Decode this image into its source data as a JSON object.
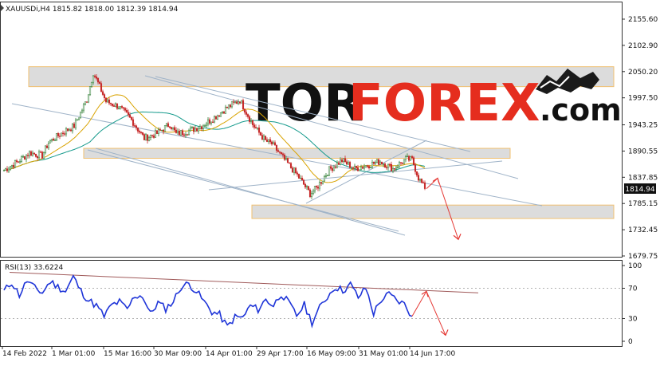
{
  "chart_data": [
    {
      "type": "candlestick",
      "title": "XAUUSDi,H4 1815.82 1818.00 1812.39 1814.94",
      "symbol": "XAUUSDi",
      "timeframe": "H4",
      "ohlc_last": {
        "open": 1815.82,
        "high": 1818.0,
        "low": 1812.39,
        "close": 1814.94
      },
      "current_price_label": "1814.94",
      "y_ticks": [
        "2155.60",
        "2102.90",
        "2050.20",
        "1997.50",
        "1943.25",
        "1890.55",
        "1837.85",
        "1785.15",
        "1732.45",
        "1679.75"
      ],
      "ylim": [
        1679.75,
        2155.6
      ],
      "x_ticks": [
        "14 Feb 2022",
        "1 Mar 01:00",
        "15 Mar 16:00",
        "30 Mar 09:00",
        "14 Apr 01:00",
        "29 Apr 17:00",
        "16 May 09:00",
        "31 May 01:00",
        "14 Jun 17:00"
      ],
      "price_path": [
        [
          0,
          1852
        ],
        [
          2,
          1868
        ],
        [
          4,
          1887
        ],
        [
          6,
          1881
        ],
        [
          7,
          1908
        ],
        [
          9,
          1926
        ],
        [
          11,
          1941
        ],
        [
          13,
          1994
        ],
        [
          14,
          2048
        ],
        [
          15,
          2020
        ],
        [
          16,
          1990
        ],
        [
          18,
          1980
        ],
        [
          20,
          1953
        ],
        [
          22,
          1916
        ],
        [
          24,
          1926
        ],
        [
          26,
          1945
        ],
        [
          27,
          1925
        ],
        [
          29,
          1931
        ],
        [
          31,
          1941
        ],
        [
          33,
          1958
        ],
        [
          35,
          1978
        ],
        [
          37,
          1993
        ],
        [
          39,
          1944
        ],
        [
          41,
          1911
        ],
        [
          42,
          1905
        ],
        [
          44,
          1873
        ],
        [
          46,
          1842
        ],
        [
          48,
          1805
        ],
        [
          49,
          1816
        ],
        [
          51,
          1853
        ],
        [
          53,
          1872
        ],
        [
          55,
          1855
        ],
        [
          57,
          1862
        ],
        [
          59,
          1870
        ],
        [
          61,
          1855
        ],
        [
          63,
          1874
        ],
        [
          64,
          1873
        ],
        [
          65,
          1837
        ],
        [
          66,
          1815
        ]
      ],
      "zones": [
        {
          "low": 2020,
          "high": 2060
        },
        {
          "low": 1876,
          "high": 1896
        },
        {
          "low": 1755,
          "high": 1782
        }
      ],
      "forecast": {
        "to_price": 1836,
        "then_price": 1713
      }
    },
    {
      "type": "line",
      "title": "RSI(13) 33.6224",
      "indicator": "RSI(13)",
      "value": 33.6224,
      "y_ticks": [
        "100",
        "70",
        "30",
        "0"
      ],
      "ylim": [
        0,
        100
      ],
      "levels": [
        70,
        30
      ],
      "rsi_path": [
        [
          0,
          66
        ],
        [
          1,
          78
        ],
        [
          2,
          61
        ],
        [
          3,
          80
        ],
        [
          4,
          70
        ],
        [
          5,
          64
        ],
        [
          6,
          79
        ],
        [
          7,
          72
        ],
        [
          8,
          66
        ],
        [
          9,
          85
        ],
        [
          10,
          66
        ],
        [
          11,
          54
        ],
        [
          12,
          47
        ],
        [
          13,
          33
        ],
        [
          14,
          48
        ],
        [
          15,
          52
        ],
        [
          16,
          42
        ],
        [
          17,
          60
        ],
        [
          18,
          60
        ],
        [
          19,
          36
        ],
        [
          20,
          51
        ],
        [
          21,
          43
        ],
        [
          22,
          53
        ],
        [
          23,
          72
        ],
        [
          24,
          76
        ],
        [
          25,
          66
        ],
        [
          26,
          52
        ],
        [
          27,
          39
        ],
        [
          28,
          35
        ],
        [
          29,
          19
        ],
        [
          30,
          32
        ],
        [
          31,
          31
        ],
        [
          32,
          47
        ],
        [
          33,
          42
        ],
        [
          34,
          55
        ],
        [
          35,
          47
        ],
        [
          36,
          63
        ],
        [
          37,
          50
        ],
        [
          38,
          34
        ],
        [
          39,
          48
        ],
        [
          40,
          25
        ],
        [
          41,
          44
        ],
        [
          42,
          59
        ],
        [
          43,
          72
        ],
        [
          44,
          67
        ],
        [
          45,
          75
        ],
        [
          46,
          58
        ],
        [
          47,
          70
        ],
        [
          48,
          37
        ],
        [
          49,
          55
        ],
        [
          50,
          62
        ],
        [
          51,
          54
        ],
        [
          52,
          49
        ],
        [
          53,
          33
        ]
      ],
      "forecast": {
        "to_value": 66,
        "then_value": 8
      }
    }
  ],
  "logo": {
    "tor": "TOR",
    "forex": "FOREX",
    "com": ".com"
  },
  "colors": {
    "up": "#2e7d32",
    "down": "#c62828",
    "ma_slow": "#159a8c",
    "ma_fast": "#d9a300",
    "channel": "#9fb3c8",
    "zone_fill": "#d6d6d6",
    "zone_border": "#f0c070",
    "rsi_line": "#1f35d8",
    "rsi_trend": "#a05a5a",
    "forecast": "#e53935",
    "logo_dark": "#111111",
    "logo_red": "#e52d1e"
  }
}
